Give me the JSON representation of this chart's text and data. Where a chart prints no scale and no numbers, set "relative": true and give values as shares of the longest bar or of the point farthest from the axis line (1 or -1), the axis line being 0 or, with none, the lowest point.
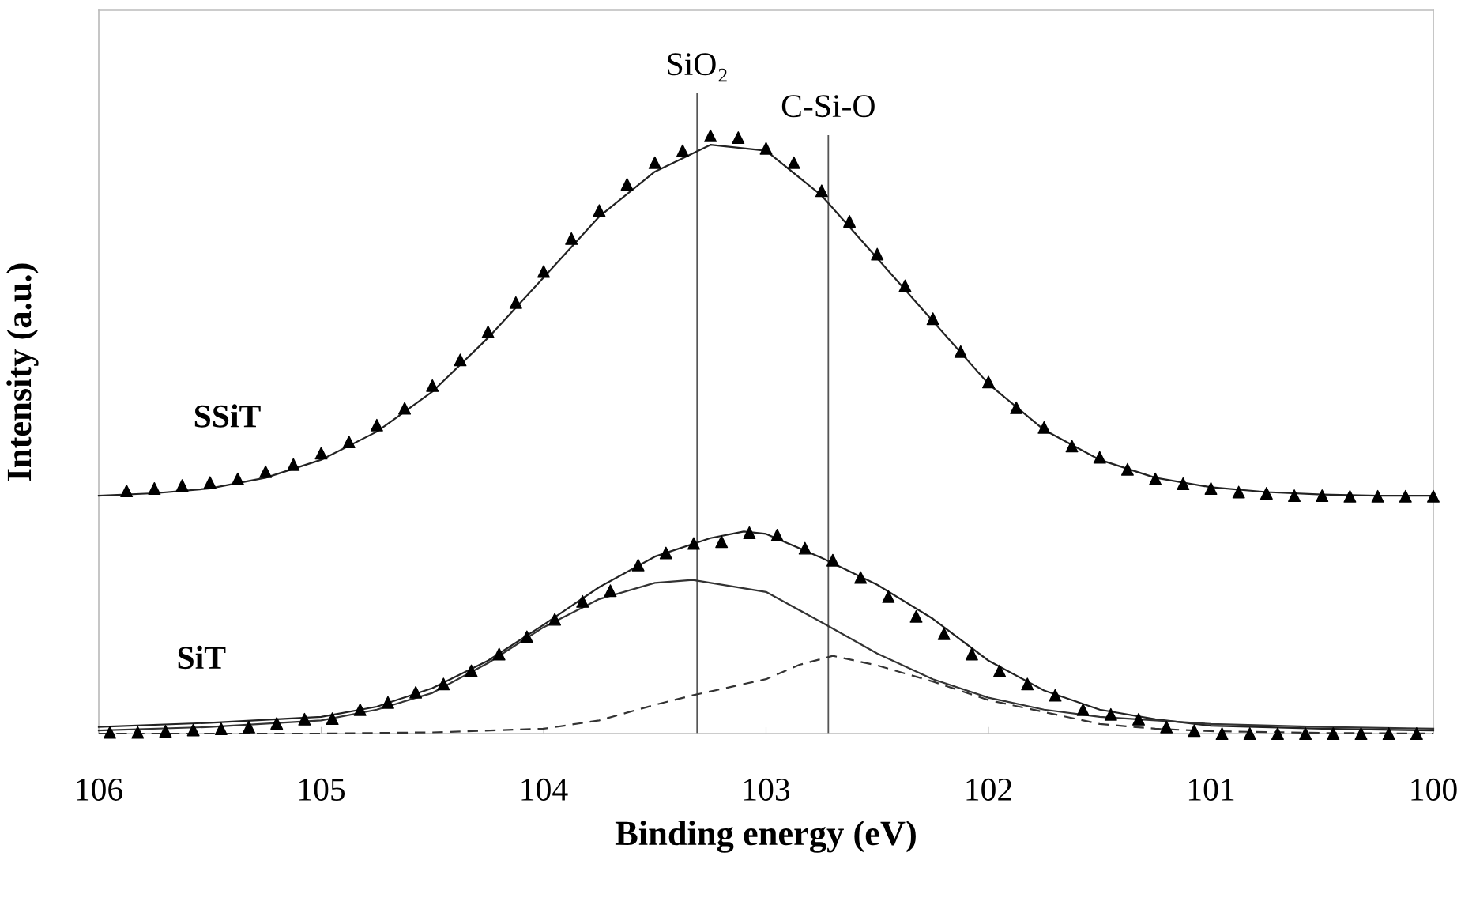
{
  "chart_data": {
    "type": "scatter",
    "xlabel": "Binding energy (eV)",
    "ylabel": "Intensity (a.u.)",
    "relative": true,
    "xlim": [
      106,
      100
    ],
    "xticks": [
      106,
      105,
      104,
      103,
      102,
      101,
      100
    ],
    "tick_labels": "x",
    "grid": false,
    "legend": false,
    "ref_lines": [
      {
        "axis": "x",
        "value": 103.31,
        "label": "SiO₂",
        "color": "#555555"
      },
      {
        "axis": "x",
        "value": 102.72,
        "label": "C-Si-O",
        "color": "#555555"
      }
    ],
    "series": [
      {
        "name": "SSiT",
        "marker": "triangle",
        "color": "#000000",
        "x": [
          105.875,
          105.75,
          105.625,
          105.5,
          105.375,
          105.25,
          105.125,
          105.0,
          104.875,
          104.75,
          104.625,
          104.5,
          104.375,
          104.25,
          104.125,
          104.0,
          103.875,
          103.75,
          103.625,
          103.5,
          103.375,
          103.25,
          103.125,
          103.0,
          102.875,
          102.75,
          102.625,
          102.5,
          102.375,
          102.25,
          102.125,
          102.0,
          101.875,
          101.75,
          101.625,
          101.5,
          101.375,
          101.25,
          101.125,
          101.0,
          100.875,
          100.75,
          100.625,
          100.5,
          100.375,
          100.25,
          100.125,
          100.0
        ],
        "values": [
          0.406,
          0.41,
          0.415,
          0.42,
          0.426,
          0.438,
          0.45,
          0.469,
          0.488,
          0.516,
          0.544,
          0.582,
          0.625,
          0.672,
          0.721,
          0.773,
          0.828,
          0.875,
          0.919,
          0.955,
          0.975,
          1.0,
          0.997,
          0.979,
          0.955,
          0.908,
          0.857,
          0.802,
          0.749,
          0.694,
          0.639,
          0.588,
          0.545,
          0.512,
          0.481,
          0.462,
          0.442,
          0.426,
          0.418,
          0.41,
          0.404,
          0.402,
          0.398,
          0.398,
          0.397,
          0.397,
          0.397,
          0.397
        ]
      },
      {
        "type": "line",
        "line_style": "solid",
        "color": "#222222",
        "x": [
          106,
          105.75,
          105.5,
          105.25,
          105,
          104.75,
          104.5,
          104.25,
          104,
          103.75,
          103.5,
          103.25,
          103,
          102.75,
          102.5,
          102.25,
          102,
          101.75,
          101.5,
          101.25,
          101,
          100.75,
          100.5,
          100.25,
          100
        ],
        "values": [
          0.398,
          0.402,
          0.41,
          0.428,
          0.458,
          0.505,
          0.572,
          0.662,
          0.763,
          0.865,
          0.94,
          0.985,
          0.975,
          0.9,
          0.795,
          0.69,
          0.585,
          0.508,
          0.458,
          0.428,
          0.412,
          0.404,
          0.4,
          0.398,
          0.398
        ]
      },
      {
        "name": "SiT",
        "marker": "triangle",
        "color": "#000000",
        "x": [
          105.95,
          105.825,
          105.7,
          105.575,
          105.45,
          105.325,
          105.2,
          105.075,
          104.95,
          104.825,
          104.7,
          104.575,
          104.45,
          104.325,
          104.2,
          104.075,
          103.95,
          103.825,
          103.7,
          103.575,
          103.45,
          103.325,
          103.2,
          103.075,
          102.95,
          102.825,
          102.7,
          102.575,
          102.45,
          102.325,
          102.2,
          102.075,
          101.95,
          101.825,
          101.7,
          101.575,
          101.45,
          101.325,
          101.2,
          101.075,
          100.95,
          100.825,
          100.7,
          100.575,
          100.45,
          100.325,
          100.2,
          100.075
        ],
        "values": [
          0.002,
          0.002,
          0.004,
          0.006,
          0.008,
          0.011,
          0.017,
          0.024,
          0.025,
          0.04,
          0.052,
          0.069,
          0.083,
          0.105,
          0.133,
          0.162,
          0.191,
          0.221,
          0.239,
          0.282,
          0.302,
          0.318,
          0.321,
          0.336,
          0.332,
          0.31,
          0.29,
          0.261,
          0.229,
          0.196,
          0.167,
          0.133,
          0.105,
          0.083,
          0.064,
          0.04,
          0.032,
          0.024,
          0.011,
          0.005,
          0.0,
          0.0,
          0.0,
          0.0,
          0.0,
          0.0,
          0.0,
          0.0
        ]
      },
      {
        "type": "line",
        "line_style": "solid",
        "color": "#222222",
        "x": [
          106,
          105.5,
          105,
          104.75,
          104.5,
          104.25,
          104,
          103.75,
          103.5,
          103.25,
          103.1,
          103,
          102.75,
          102.5,
          102.25,
          102,
          101.75,
          101.5,
          101.25,
          101,
          100.5,
          100
        ],
        "values": [
          0.011,
          0.018,
          0.028,
          0.045,
          0.076,
          0.122,
          0.182,
          0.245,
          0.296,
          0.327,
          0.338,
          0.334,
          0.294,
          0.249,
          0.192,
          0.122,
          0.072,
          0.04,
          0.024,
          0.013,
          0.008,
          0.005
        ]
      },
      {
        "type": "line",
        "line_style": "solid",
        "color": "#333333",
        "x": [
          106,
          105.5,
          105,
          104.75,
          104.5,
          104.25,
          104,
          103.75,
          103.5,
          103.33,
          103,
          102.75,
          102.5,
          102.25,
          102,
          101.75,
          101.5,
          101,
          100.5,
          100
        ],
        "values": [
          0.005,
          0.011,
          0.022,
          0.04,
          0.068,
          0.118,
          0.178,
          0.225,
          0.252,
          0.257,
          0.237,
          0.186,
          0.134,
          0.091,
          0.06,
          0.04,
          0.028,
          0.016,
          0.011,
          0.008
        ]
      },
      {
        "type": "line",
        "line_style": "dashed",
        "color": "#333333",
        "x": [
          106,
          105,
          104.5,
          104,
          103.75,
          103.5,
          103.33,
          103,
          102.85,
          102.7,
          102.5,
          102.25,
          102,
          101.75,
          101.5,
          101.25,
          101,
          100.5,
          100
        ],
        "values": [
          0.0,
          0.0,
          0.002,
          0.008,
          0.022,
          0.048,
          0.064,
          0.091,
          0.115,
          0.13,
          0.114,
          0.087,
          0.056,
          0.036,
          0.016,
          0.008,
          0.004,
          0.001,
          0.0
        ]
      }
    ]
  }
}
